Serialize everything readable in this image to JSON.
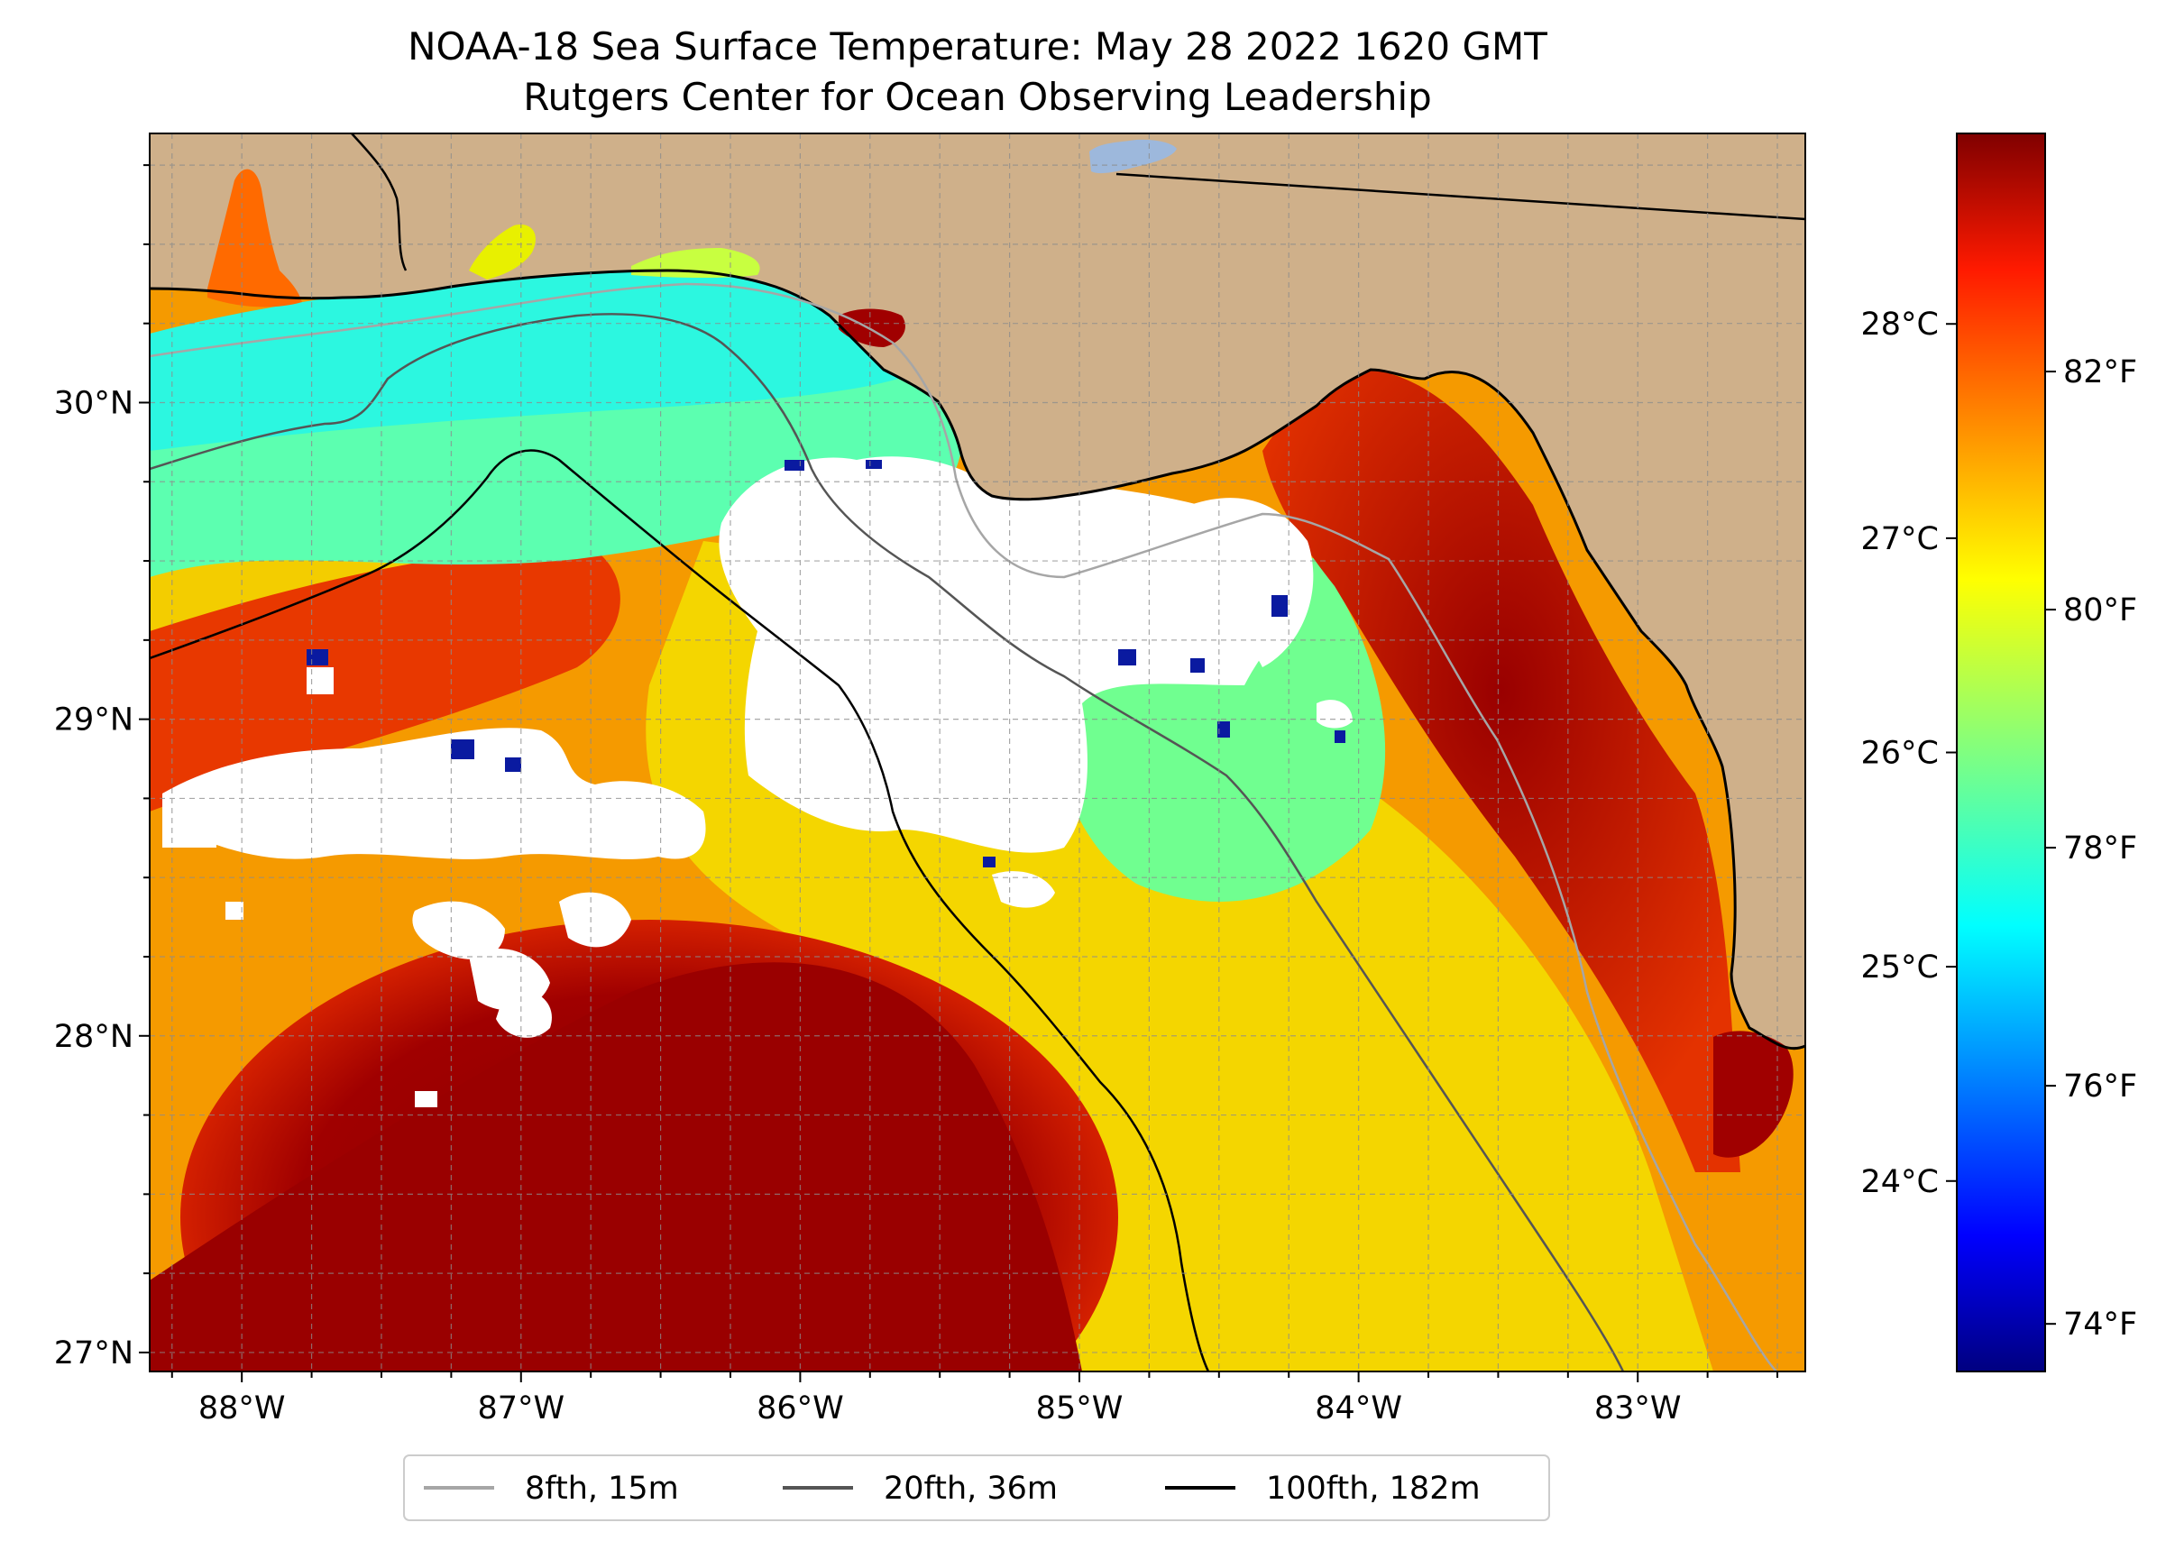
{
  "title": {
    "line1": "NOAA-18 Sea Surface Temperature: May 28 2022 1620 GMT",
    "line2": "Rutgers Center for Ocean Observing Leadership"
  },
  "map": {
    "lon_range": [
      -88.33,
      -82.4
    ],
    "lat_range": [
      26.94,
      30.85
    ],
    "lon_ticks": [
      {
        "value": -88,
        "label": "88°W"
      },
      {
        "value": -87,
        "label": "87°W"
      },
      {
        "value": -86,
        "label": "86°W"
      },
      {
        "value": -85,
        "label": "85°W"
      },
      {
        "value": -84,
        "label": "84°W"
      },
      {
        "value": -83,
        "label": "83°W"
      }
    ],
    "lat_ticks": [
      {
        "value": 30,
        "label": "30°N"
      },
      {
        "value": 29,
        "label": "29°N"
      },
      {
        "value": 28,
        "label": "28°N"
      },
      {
        "value": 27,
        "label": "27°N"
      }
    ],
    "gridlines": true,
    "land_color": "#cfb08a",
    "no_data_color": "#ffffff"
  },
  "colorbar": {
    "colormap": "jet",
    "celsius_ticks": [
      {
        "value": 28,
        "label": "28°C"
      },
      {
        "value": 27,
        "label": "27°C"
      },
      {
        "value": 26,
        "label": "26°C"
      },
      {
        "value": 25,
        "label": "25°C"
      },
      {
        "value": 24,
        "label": "24°C"
      }
    ],
    "fahrenheit_ticks": [
      {
        "value": 82,
        "label": "82°F"
      },
      {
        "value": 80,
        "label": "80°F"
      },
      {
        "value": 78,
        "label": "78°F"
      },
      {
        "value": 76,
        "label": "76°F"
      },
      {
        "value": 74,
        "label": "74°F"
      }
    ]
  },
  "legend": {
    "placement": "bottom-center",
    "items": [
      {
        "label": "8fth, 15m",
        "color": "#a6a6a6"
      },
      {
        "label": "20fth, 36m",
        "color": "#555555"
      },
      {
        "label": "100fth, 182m",
        "color": "#000000"
      }
    ]
  }
}
